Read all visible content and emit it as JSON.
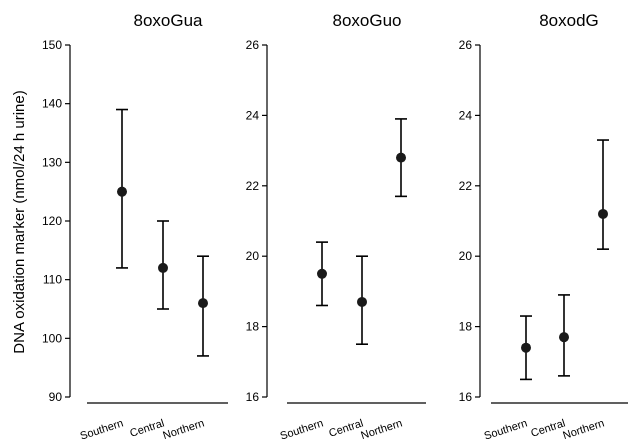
{
  "chart_data": {
    "type": "scatter",
    "ylabel": "DNA oxidation marker (nmol/24 h urine)",
    "categories": [
      "Southern",
      "Central",
      "Northern"
    ],
    "marker_color": "#1a1a1a",
    "grid": false,
    "panels": [
      {
        "title": "8oxoGua",
        "ylim": [
          90,
          150
        ],
        "yticks": [
          90,
          100,
          110,
          120,
          130,
          140,
          150
        ],
        "points": [
          {
            "category": "Southern",
            "mean": 125,
            "lower": 112,
            "upper": 139
          },
          {
            "category": "Central",
            "mean": 112,
            "lower": 105,
            "upper": 120
          },
          {
            "category": "Northern",
            "mean": 106,
            "lower": 97,
            "upper": 114
          }
        ]
      },
      {
        "title": "8oxoGuo",
        "ylim": [
          16,
          26
        ],
        "yticks": [
          16,
          18,
          20,
          22,
          24,
          26
        ],
        "points": [
          {
            "category": "Southern",
            "mean": 19.5,
            "lower": 18.6,
            "upper": 20.4
          },
          {
            "category": "Central",
            "mean": 18.7,
            "lower": 17.5,
            "upper": 20.0
          },
          {
            "category": "Northern",
            "mean": 22.8,
            "lower": 21.7,
            "upper": 23.9
          }
        ]
      },
      {
        "title": "8oxodG",
        "ylim": [
          16,
          26
        ],
        "yticks": [
          16,
          18,
          20,
          22,
          24,
          26
        ],
        "points": [
          {
            "category": "Southern",
            "mean": 17.4,
            "lower": 16.5,
            "upper": 18.3
          },
          {
            "category": "Central",
            "mean": 17.7,
            "lower": 16.6,
            "upper": 18.9
          },
          {
            "category": "Northern",
            "mean": 21.2,
            "lower": 20.2,
            "upper": 23.3
          }
        ]
      }
    ]
  }
}
